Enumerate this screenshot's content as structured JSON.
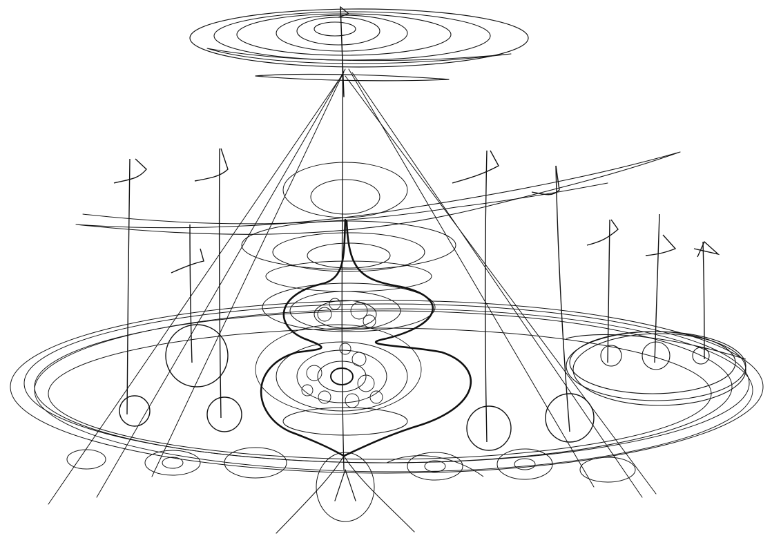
{
  "drawing": {
    "subject": "scribble-structure",
    "ink_color": "#111111",
    "background": "#ffffff"
  }
}
